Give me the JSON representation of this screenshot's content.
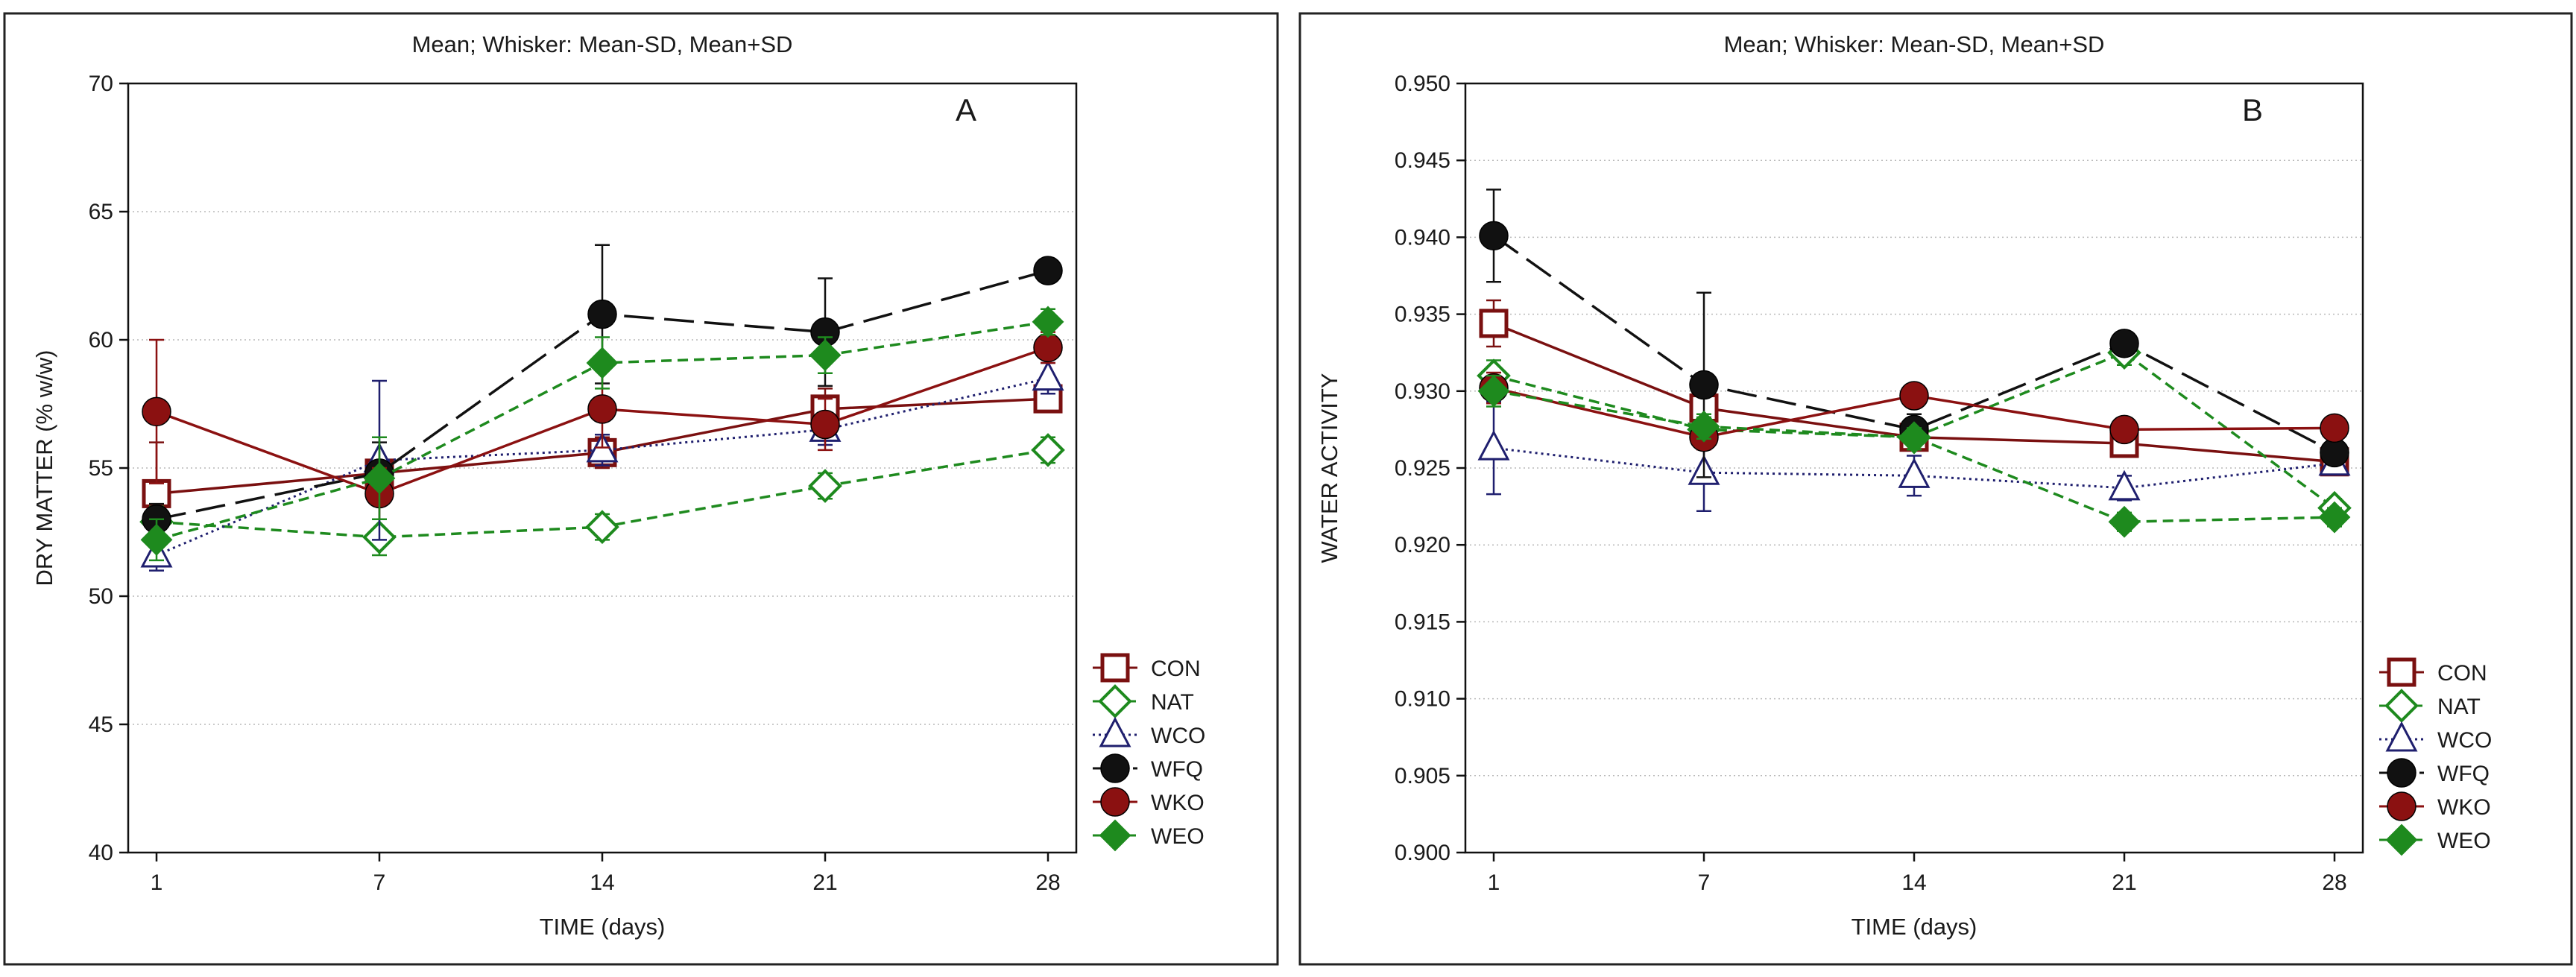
{
  "figure": {
    "legend_entries": [
      {
        "name": "CON",
        "marker": "square-open",
        "color": "#7a1010",
        "line": "solid"
      },
      {
        "name": "NAT",
        "marker": "diamond-open",
        "color": "#1e8a1e",
        "line": "dashed"
      },
      {
        "name": "WCO",
        "marker": "triangle-open",
        "color": "#1f1f6e",
        "line": "dotted"
      },
      {
        "name": "WFQ",
        "marker": "circle-filled",
        "color": "#111111",
        "line": "longdash"
      },
      {
        "name": "WKO",
        "marker": "circle-filled",
        "color": "#8b1111",
        "line": "solid"
      },
      {
        "name": "WEO",
        "marker": "diamond-filled",
        "color": "#1e8a1e",
        "line": "dashed"
      }
    ]
  },
  "chart_data": [
    {
      "type": "line",
      "title": "Mean;  Whisker: Mean-SD, Mean+SD",
      "panel_label": "A",
      "xlabel": "TIME (days)",
      "ylabel": "DRY MATTER (% w/w)",
      "x": [
        1,
        7,
        14,
        21,
        28
      ],
      "x_tick_labels": [
        "1",
        "7",
        "14",
        "21",
        "28"
      ],
      "ylim": [
        40,
        70
      ],
      "y_ticks": [
        40,
        45,
        50,
        55,
        60,
        65,
        70
      ],
      "y_tick_labels": [
        "40",
        "45",
        "50",
        "55",
        "60",
        "65",
        "70"
      ],
      "grid": "horizontal",
      "legend_position": "bottom-right",
      "series": [
        {
          "name": "CON",
          "values": [
            54.0,
            54.8,
            55.6,
            57.3,
            57.7
          ],
          "sd": [
            2.0,
            0.6,
            0.6,
            0.8,
            0.4
          ]
        },
        {
          "name": "NAT",
          "values": [
            52.9,
            52.3,
            52.7,
            54.3,
            55.7
          ],
          "sd": [
            0.6,
            0.7,
            0.5,
            0.5,
            0.5
          ]
        },
        {
          "name": "WCO",
          "values": [
            51.6,
            55.3,
            55.7,
            56.5,
            58.5
          ],
          "sd": [
            0.6,
            3.1,
            0.6,
            0.6,
            0.6
          ]
        },
        {
          "name": "WFQ",
          "values": [
            53.0,
            54.8,
            61.0,
            60.3,
            62.7
          ],
          "sd": [
            0.6,
            1.2,
            2.7,
            2.1,
            0.4
          ]
        },
        {
          "name": "WKO",
          "values": [
            57.2,
            54.0,
            57.3,
            56.7,
            59.7
          ],
          "sd": [
            2.8,
            1.0,
            1.5,
            1.0,
            0.6
          ]
        },
        {
          "name": "WEO",
          "values": [
            52.2,
            54.6,
            59.1,
            59.4,
            60.7
          ],
          "sd": [
            0.8,
            1.6,
            1.0,
            0.7,
            0.5
          ]
        }
      ]
    },
    {
      "type": "line",
      "title": "Mean;  Whisker: Mean-SD, Mean+SD",
      "panel_label": "B",
      "xlabel": "TIME (days)",
      "ylabel": "WATER ACTIVITY",
      "x": [
        1,
        7,
        14,
        21,
        28
      ],
      "x_tick_labels": [
        "1",
        "7",
        "14",
        "21",
        "28"
      ],
      "ylim": [
        0.9,
        0.95
      ],
      "y_ticks": [
        0.9,
        0.905,
        0.91,
        0.915,
        0.92,
        0.925,
        0.93,
        0.935,
        0.94,
        0.945,
        0.95
      ],
      "y_tick_labels": [
        "0.900",
        "0.905",
        "0.910",
        "0.915",
        "0.920",
        "0.925",
        "0.930",
        "0.935",
        "0.940",
        "0.945",
        "0.950"
      ],
      "grid": "horizontal",
      "legend_position": "bottom-right",
      "series": [
        {
          "name": "CON",
          "values": [
            0.9344,
            0.9289,
            0.927,
            0.9266,
            0.9254
          ],
          "sd": [
            0.0015,
            0.001,
            0.0008,
            0.0008,
            0.0006
          ]
        },
        {
          "name": "NAT",
          "values": [
            0.931,
            0.9275,
            0.927,
            0.9325,
            0.9224
          ],
          "sd": [
            0.001,
            0.0008,
            0.0008,
            0.0008,
            0.0006
          ]
        },
        {
          "name": "WCO",
          "values": [
            0.9263,
            0.9247,
            0.9245,
            0.9237,
            0.9253
          ],
          "sd": [
            0.003,
            0.0025,
            0.0013,
            0.0008,
            0.0006
          ]
        },
        {
          "name": "WFQ",
          "values": [
            0.9401,
            0.9304,
            0.9275,
            0.9331,
            0.926
          ],
          "sd": [
            0.003,
            0.006,
            0.001,
            0.0006,
            0.0006
          ]
        },
        {
          "name": "WKO",
          "values": [
            0.9302,
            0.927,
            0.9297,
            0.9275,
            0.9276
          ],
          "sd": [
            0.001,
            0.0008,
            0.0006,
            0.0006,
            0.0006
          ]
        },
        {
          "name": "WEO",
          "values": [
            0.93,
            0.9277,
            0.927,
            0.9215,
            0.9218
          ],
          "sd": [
            0.001,
            0.0008,
            0.0006,
            0.0006,
            0.0006
          ]
        }
      ]
    }
  ]
}
